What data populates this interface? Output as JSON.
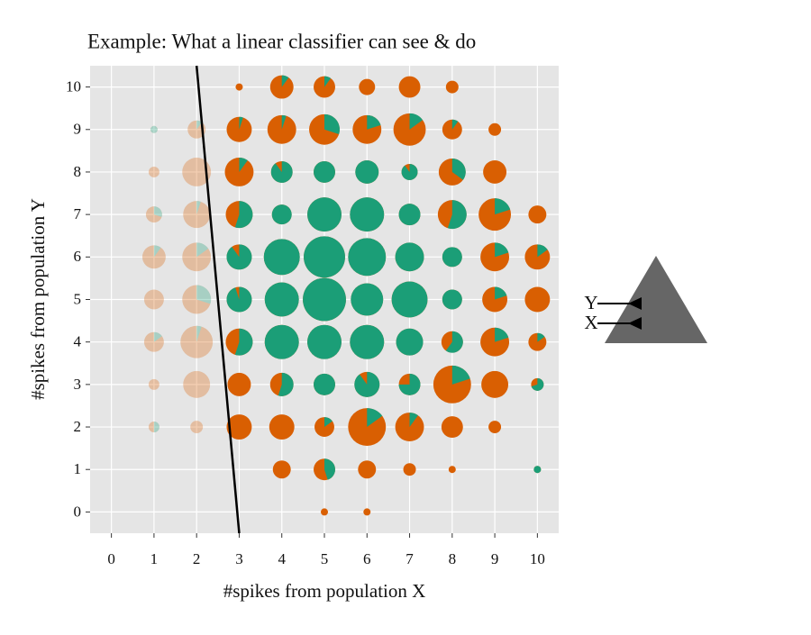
{
  "chart_data": {
    "type": "pie-scatter",
    "title": "Example: What a linear classifier can see & do",
    "x_label": "#spikes from population X",
    "y_label": "#spikes from population Y",
    "xlim": [
      -0.5,
      10.5
    ],
    "ylim": [
      -0.5,
      10.5
    ],
    "xticks": [
      0,
      1,
      2,
      3,
      4,
      5,
      6,
      7,
      8,
      9,
      10
    ],
    "yticks": [
      0,
      1,
      2,
      3,
      4,
      5,
      6,
      7,
      8,
      9,
      10
    ],
    "grid": true,
    "slice_colors": [
      "#1b9e77",
      "#d95f02"
    ],
    "decision_line": {
      "x": [
        2.0,
        3.0
      ],
      "y": [
        10.5,
        -0.5
      ],
      "color": "#000000"
    },
    "points": {
      "x": [
        3,
        4,
        5,
        6,
        7,
        8,
        1,
        2,
        3,
        4,
        5,
        6,
        7,
        8,
        9,
        1,
        2,
        3,
        4,
        5,
        6,
        7,
        8,
        9,
        1,
        2,
        3,
        4,
        5,
        6,
        7,
        8,
        9,
        10,
        1,
        2,
        3,
        4,
        5,
        6,
        7,
        8,
        9,
        10,
        1,
        2,
        3,
        4,
        5,
        6,
        7,
        8,
        9,
        10,
        1,
        2,
        3,
        4,
        5,
        6,
        7,
        8,
        9,
        10,
        1,
        2,
        3,
        4,
        5,
        6,
        7,
        8,
        9,
        10,
        1,
        2,
        3,
        4,
        5,
        6,
        7,
        8,
        9,
        4,
        5,
        6,
        7,
        8,
        10,
        5,
        6
      ],
      "y": [
        10,
        10,
        10,
        10,
        10,
        10,
        9,
        9,
        9,
        9,
        9,
        9,
        9,
        9,
        9,
        8,
        8,
        8,
        8,
        8,
        8,
        8,
        8,
        8,
        7,
        7,
        7,
        7,
        7,
        7,
        7,
        7,
        7,
        7,
        6,
        6,
        6,
        6,
        6,
        6,
        6,
        6,
        6,
        6,
        5,
        5,
        5,
        5,
        5,
        5,
        5,
        5,
        5,
        5,
        4,
        4,
        4,
        4,
        4,
        4,
        4,
        4,
        4,
        4,
        3,
        3,
        3,
        3,
        3,
        3,
        3,
        3,
        3,
        3,
        2,
        2,
        2,
        2,
        2,
        2,
        2,
        2,
        2,
        1,
        1,
        1,
        1,
        1,
        1,
        0,
        0
      ],
      "sizes": [
        4,
        13,
        12,
        9,
        12,
        7,
        4,
        10,
        14,
        16,
        17,
        16,
        18,
        11,
        7,
        6,
        16,
        16,
        12,
        12,
        13,
        9,
        15,
        13,
        9,
        15,
        15,
        11,
        19,
        19,
        12,
        16,
        18,
        10,
        13,
        16,
        14,
        20,
        23,
        21,
        16,
        11,
        16,
        14,
        11,
        16,
        14,
        19,
        24,
        18,
        20,
        11,
        14,
        14,
        11,
        18,
        15,
        19,
        19,
        19,
        15,
        12,
        16,
        10,
        6,
        15,
        13,
        13,
        12,
        14,
        12,
        21,
        15,
        7,
        6,
        7,
        14,
        14,
        11,
        21,
        16,
        12,
        7,
        10,
        12,
        10,
        7,
        4,
        4,
        4,
        4
      ],
      "green_share": [
        0,
        0.1,
        0.1,
        0,
        0,
        0,
        1,
        0.1,
        0.05,
        0.05,
        0.3,
        0.2,
        0.15,
        0.1,
        0,
        0,
        0,
        0.1,
        0.9,
        1,
        1,
        0.9,
        0.35,
        0,
        0.3,
        0.05,
        0.55,
        1,
        1,
        1,
        1,
        0.55,
        0.2,
        0,
        0.1,
        0.15,
        0.9,
        1,
        1,
        1,
        1,
        1,
        0.2,
        0.15,
        0,
        0.3,
        0.95,
        1,
        1,
        1,
        1,
        1,
        0.2,
        0,
        0.15,
        0.05,
        0.55,
        1,
        1,
        1,
        1,
        0.6,
        0.2,
        0.15,
        0,
        0,
        0,
        0.55,
        1,
        0.9,
        0.75,
        0.2,
        0,
        0.7,
        0.5,
        0,
        0,
        0,
        0.15,
        0.15,
        0.1,
        0,
        0,
        0,
        0.45,
        0,
        0,
        0,
        1,
        0,
        0
      ]
    }
  },
  "diagram": {
    "inputs": [
      "Y",
      "X"
    ]
  }
}
